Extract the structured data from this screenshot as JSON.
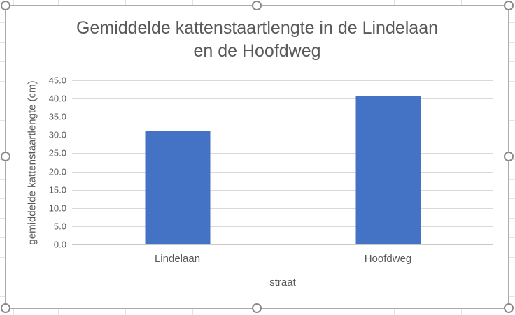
{
  "sheet": {
    "background": "#ffffff",
    "cell_gridline_color": "#e2e2e2"
  },
  "chart": {
    "selected": true,
    "background": "#ffffff",
    "border_color": "#ababab",
    "handle_color": "#8a8a8a"
  },
  "chart_data": {
    "type": "bar",
    "title": "Gemiddelde kattenstaartlengte in de Lindelaan en de Hoofdweg",
    "title_lines": [
      "Gemiddelde kattenstaartlengte in de Lindelaan",
      "en de Hoofdweg"
    ],
    "categories": [
      "Lindelaan",
      "Hoofdweg"
    ],
    "values": [
      31.3,
      40.8
    ],
    "xlabel": "straat",
    "ylabel": "gemiddelde kattenstaartlengte (cm)",
    "ylim": [
      0,
      45
    ],
    "ytick_step": 5,
    "ytick_labels": [
      "0.0",
      "5.0",
      "10.0",
      "15.0",
      "20.0",
      "25.0",
      "30.0",
      "35.0",
      "40.0",
      "45.0"
    ],
    "grid": true,
    "legend": false,
    "bar_color": "#4472c4",
    "gridline_color": "#d9d9d9",
    "axis_line_color": "#c9c9c9",
    "text_color": "#595959"
  }
}
